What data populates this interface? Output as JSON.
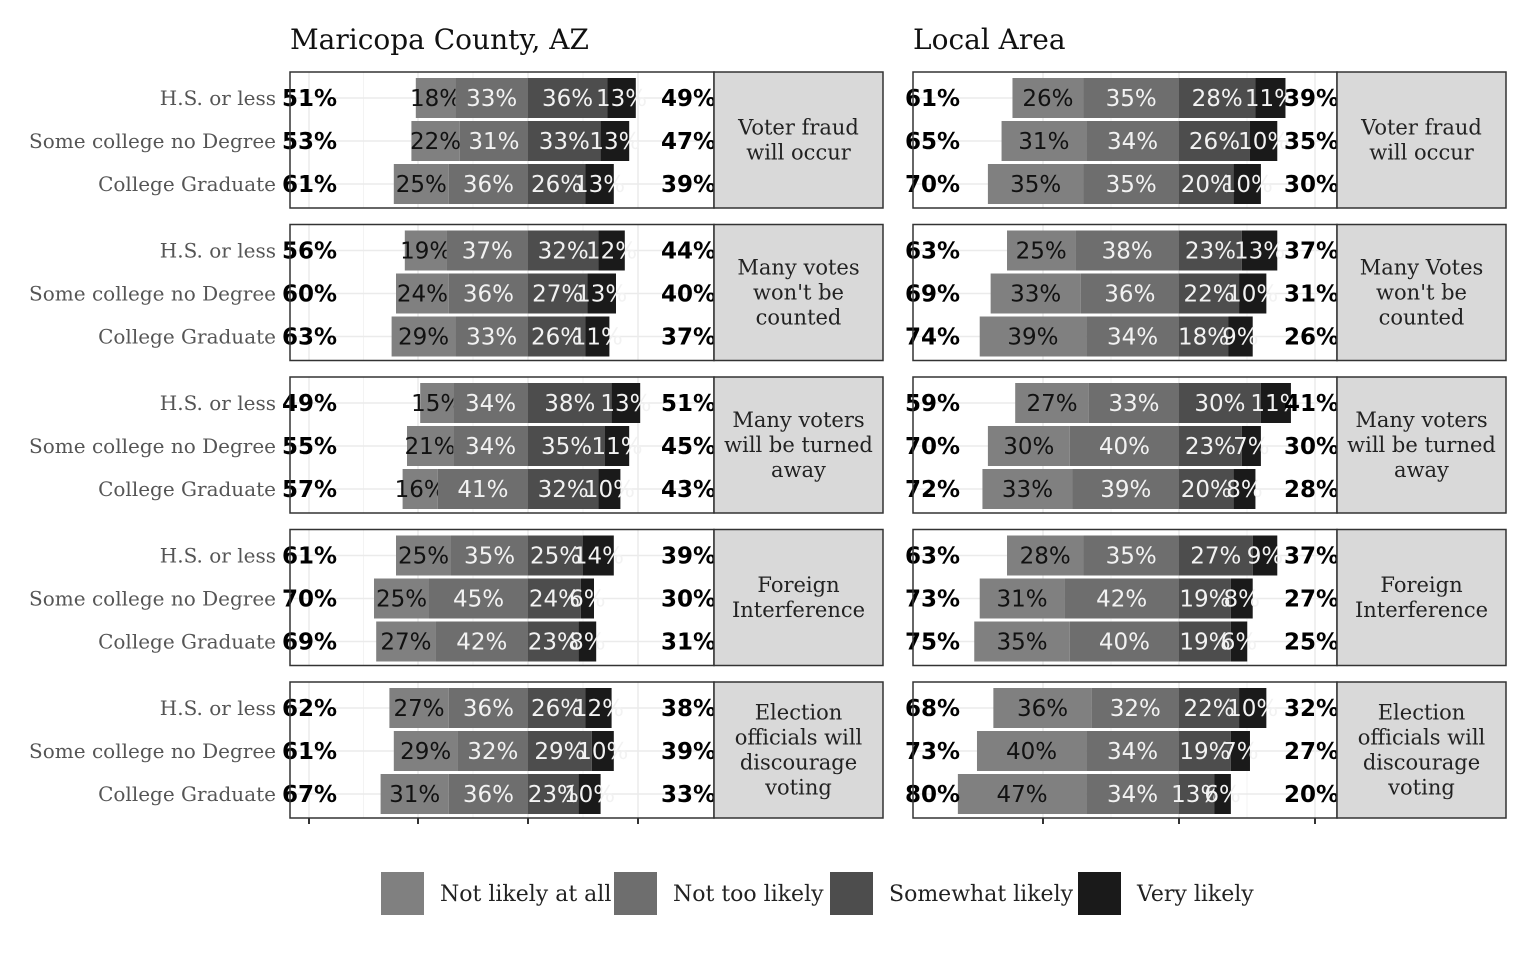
{
  "chart_data": {
    "type": "bar",
    "orientation": "horizontal-diverging",
    "titles": [
      "Maricopa County, AZ",
      "Local Area"
    ],
    "row_labels": [
      "H.S. or less",
      "Some college no Degree",
      "College Graduate"
    ],
    "legend": {
      "position": "bottom",
      "items": [
        {
          "name": "Not likely at all",
          "color": "#808080"
        },
        {
          "name": "Not too likely",
          "color": "#6e6e6e"
        },
        {
          "name": "Somewhat likely",
          "color": "#4d4d4d"
        },
        {
          "name": "Very likely",
          "color": "#1a1a1a"
        }
      ]
    },
    "categories": [
      "Voter fraud will occur",
      "Many votes won't be counted",
      "Many voters will be turned away",
      "Foreign Interference",
      "Election officials will discourage voting"
    ],
    "panels": [
      {
        "region": "Maricopa County, AZ",
        "facets": [
          {
            "strip": [
              "Voter fraud",
              "will occur"
            ],
            "rows": [
              {
                "label": "H.S. or less",
                "values": [
                  18,
                  33,
                  36,
                  13
                ],
                "labels": [
                  "18%",
                  "33%",
                  "36%",
                  "13%"
                ],
                "left_total": "51%",
                "right_total": "49%"
              },
              {
                "label": "Some college no Degree",
                "values": [
                  22,
                  31,
                  33,
                  13
                ],
                "labels": [
                  "22%",
                  "31%",
                  "33%",
                  "13%"
                ],
                "left_total": "53%",
                "right_total": "47%"
              },
              {
                "label": "College Graduate",
                "values": [
                  25,
                  36,
                  26,
                  13
                ],
                "labels": [
                  "25%",
                  "36%",
                  "26%",
                  "13%"
                ],
                "left_total": "61%",
                "right_total": "39%"
              }
            ]
          },
          {
            "strip": [
              "Many votes",
              "won't be",
              "counted"
            ],
            "rows": [
              {
                "label": "H.S. or less",
                "values": [
                  19,
                  37,
                  32,
                  12
                ],
                "labels": [
                  "19%",
                  "37%",
                  "32%",
                  "12%"
                ],
                "left_total": "56%",
                "right_total": "44%"
              },
              {
                "label": "Some college no Degree",
                "values": [
                  24,
                  36,
                  27,
                  13
                ],
                "labels": [
                  "24%",
                  "36%",
                  "27%",
                  "13%"
                ],
                "left_total": "60%",
                "right_total": "40%"
              },
              {
                "label": "College Graduate",
                "values": [
                  29,
                  33,
                  26,
                  11
                ],
                "labels": [
                  "29%",
                  "33%",
                  "26%",
                  "11%"
                ],
                "left_total": "63%",
                "right_total": "37%"
              }
            ]
          },
          {
            "strip": [
              "Many voters",
              "will be turned",
              "away"
            ],
            "rows": [
              {
                "label": "H.S. or less",
                "values": [
                  15,
                  34,
                  38,
                  13
                ],
                "labels": [
                  "15%",
                  "34%",
                  "38%",
                  "13%"
                ],
                "left_total": "49%",
                "right_total": "51%"
              },
              {
                "label": "Some college no Degree",
                "values": [
                  21,
                  34,
                  35,
                  11
                ],
                "labels": [
                  "21%",
                  "34%",
                  "35%",
                  "11%"
                ],
                "left_total": "55%",
                "right_total": "45%"
              },
              {
                "label": "College Graduate",
                "values": [
                  16,
                  41,
                  32,
                  10
                ],
                "labels": [
                  "16%",
                  "41%",
                  "32%",
                  "10%"
                ],
                "left_total": "57%",
                "right_total": "43%"
              }
            ]
          },
          {
            "strip": [
              "Foreign",
              "Interference"
            ],
            "rows": [
              {
                "label": "H.S. or less",
                "values": [
                  25,
                  35,
                  25,
                  14
                ],
                "labels": [
                  "25%",
                  "35%",
                  "25%",
                  "14%"
                ],
                "left_total": "61%",
                "right_total": "39%"
              },
              {
                "label": "Some college no Degree",
                "values": [
                  25,
                  45,
                  24,
                  6
                ],
                "labels": [
                  "25%",
                  "45%",
                  "24%",
                  "6%"
                ],
                "left_total": "70%",
                "right_total": "30%"
              },
              {
                "label": "College Graduate",
                "values": [
                  27,
                  42,
                  23,
                  8
                ],
                "labels": [
                  "27%",
                  "42%",
                  "23%",
                  "8%"
                ],
                "left_total": "69%",
                "right_total": "31%"
              }
            ]
          },
          {
            "strip": [
              "Election",
              "officials will",
              "discourage",
              "voting"
            ],
            "rows": [
              {
                "label": "H.S. or less",
                "values": [
                  27,
                  36,
                  26,
                  12
                ],
                "labels": [
                  "27%",
                  "36%",
                  "26%",
                  "12%"
                ],
                "left_total": "62%",
                "right_total": "38%"
              },
              {
                "label": "Some college no Degree",
                "values": [
                  29,
                  32,
                  29,
                  10
                ],
                "labels": [
                  "29%",
                  "32%",
                  "29%",
                  "10%"
                ],
                "left_total": "61%",
                "right_total": "39%"
              },
              {
                "label": "College Graduate",
                "values": [
                  31,
                  36,
                  23,
                  10
                ],
                "labels": [
                  "31%",
                  "36%",
                  "23%",
                  "10%"
                ],
                "left_total": "67%",
                "right_total": "33%"
              }
            ]
          }
        ]
      },
      {
        "region": "Local Area",
        "facets": [
          {
            "strip": [
              "Voter fraud",
              "will occur"
            ],
            "rows": [
              {
                "label": "H.S. or less",
                "values": [
                  26,
                  35,
                  28,
                  11
                ],
                "labels": [
                  "26%",
                  "35%",
                  "28%",
                  "11%"
                ],
                "left_total": "61%",
                "right_total": "39%"
              },
              {
                "label": "Some college no Degree",
                "values": [
                  31,
                  34,
                  26,
                  10
                ],
                "labels": [
                  "31%",
                  "34%",
                  "26%",
                  "10%"
                ],
                "left_total": "65%",
                "right_total": "35%"
              },
              {
                "label": "College Graduate",
                "values": [
                  35,
                  35,
                  20,
                  10
                ],
                "labels": [
                  "35%",
                  "35%",
                  "20%",
                  "10%"
                ],
                "left_total": "70%",
                "right_total": "30%"
              }
            ]
          },
          {
            "strip": [
              "Many Votes",
              "won't be",
              "counted"
            ],
            "rows": [
              {
                "label": "H.S. or less",
                "values": [
                  25,
                  38,
                  23,
                  13
                ],
                "labels": [
                  "25%",
                  "38%",
                  "23%",
                  "13%"
                ],
                "left_total": "63%",
                "right_total": "37%"
              },
              {
                "label": "Some college no Degree",
                "values": [
                  33,
                  36,
                  22,
                  10
                ],
                "labels": [
                  "33%",
                  "36%",
                  "22%",
                  "10%"
                ],
                "left_total": "69%",
                "right_total": "31%"
              },
              {
                "label": "College Graduate",
                "values": [
                  39,
                  34,
                  18,
                  9
                ],
                "labels": [
                  "39%",
                  "34%",
                  "18%",
                  "9%"
                ],
                "left_total": "74%",
                "right_total": "26%"
              }
            ]
          },
          {
            "strip": [
              "Many voters",
              "will be turned",
              "away"
            ],
            "rows": [
              {
                "label": "H.S. or less",
                "values": [
                  27,
                  33,
                  30,
                  11
                ],
                "labels": [
                  "27%",
                  "33%",
                  "30%",
                  "11%"
                ],
                "left_total": "59%",
                "right_total": "41%"
              },
              {
                "label": "Some college no Degree",
                "values": [
                  30,
                  40,
                  23,
                  7
                ],
                "labels": [
                  "30%",
                  "40%",
                  "23%",
                  "7%"
                ],
                "left_total": "70%",
                "right_total": "30%"
              },
              {
                "label": "College Graduate",
                "values": [
                  33,
                  39,
                  20,
                  8
                ],
                "labels": [
                  "33%",
                  "39%",
                  "20%",
                  "8%"
                ],
                "left_total": "72%",
                "right_total": "28%"
              }
            ]
          },
          {
            "strip": [
              "Foreign",
              "Interference"
            ],
            "rows": [
              {
                "label": "H.S. or less",
                "values": [
                  28,
                  35,
                  27,
                  9
                ],
                "labels": [
                  "28%",
                  "35%",
                  "27%",
                  "9%"
                ],
                "left_total": "63%",
                "right_total": "37%"
              },
              {
                "label": "Some college no Degree",
                "values": [
                  31,
                  42,
                  19,
                  8
                ],
                "labels": [
                  "31%",
                  "42%",
                  "19%",
                  "8%"
                ],
                "left_total": "73%",
                "right_total": "27%"
              },
              {
                "label": "College Graduate",
                "values": [
                  35,
                  40,
                  19,
                  6
                ],
                "labels": [
                  "35%",
                  "40%",
                  "19%",
                  "6%"
                ],
                "left_total": "75%",
                "right_total": "25%"
              }
            ]
          },
          {
            "strip": [
              "Election",
              "officials will",
              "discourage",
              "voting"
            ],
            "rows": [
              {
                "label": "H.S. or less",
                "values": [
                  36,
                  32,
                  22,
                  10
                ],
                "labels": [
                  "36%",
                  "32%",
                  "22%",
                  "10%"
                ],
                "left_total": "68%",
                "right_total": "32%"
              },
              {
                "label": "Some college no Degree",
                "values": [
                  40,
                  34,
                  19,
                  7
                ],
                "labels": [
                  "40%",
                  "34%",
                  "19%",
                  "7%"
                ],
                "left_total": "73%",
                "right_total": "27%"
              },
              {
                "label": "College Graduate",
                "values": [
                  47,
                  34,
                  13,
                  6
                ],
                "labels": [
                  "47%",
                  "34%",
                  "13%",
                  "6%"
                ],
                "left_total": "80%",
                "right_total": "20%"
              }
            ]
          }
        ]
      }
    ]
  }
}
